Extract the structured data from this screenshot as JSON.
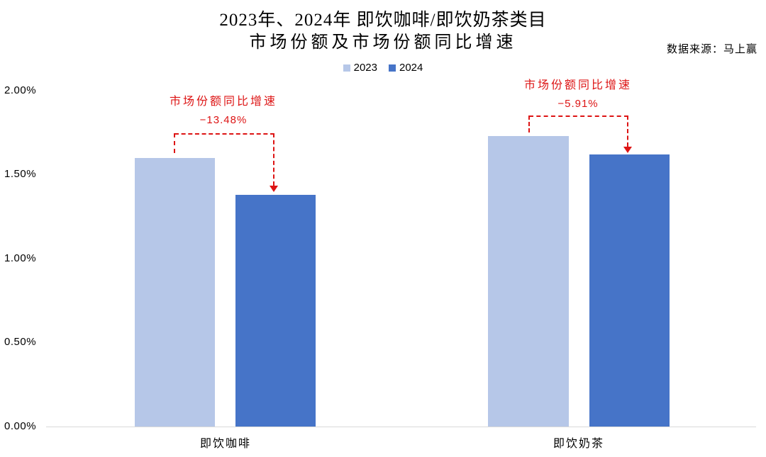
{
  "source_note": "数据来源：马上赢",
  "colors": {
    "bar_2023": "#B6C7E8",
    "bar_2024": "#4674C8",
    "annotation_red": "#DD1414",
    "axis_line": "#D9D9D9"
  },
  "chart_data": {
    "type": "bar",
    "title": "2023年、2024年 即饮咖啡/即饮奶茶类目 市场份额及市场份额同比增速",
    "title_lines": [
      "2023年、2024年 即饮咖啡/即饮奶茶类目",
      "市场份额及市场份额同比增速"
    ],
    "categories": [
      "即饮咖啡",
      "即饮奶茶"
    ],
    "series": [
      {
        "name": "2023",
        "color": "#B6C7E8",
        "values": [
          1.6,
          1.73
        ]
      },
      {
        "name": "2024",
        "color": "#4674C8",
        "values": [
          1.38,
          1.62
        ]
      }
    ],
    "value_unit": "%",
    "ylim": [
      0,
      2
    ],
    "ytick_labels": [
      "0.00%",
      "0.50%",
      "1.00%",
      "1.50%",
      "2.00%"
    ],
    "grid": false,
    "legend_position": "top",
    "annotations": [
      {
        "target": "即饮咖啡",
        "label": "市场份额同比增速",
        "value": "−13.48%"
      },
      {
        "target": "即饮奶茶",
        "label": "市场份额同比增速",
        "value": "−5.91%"
      }
    ]
  }
}
